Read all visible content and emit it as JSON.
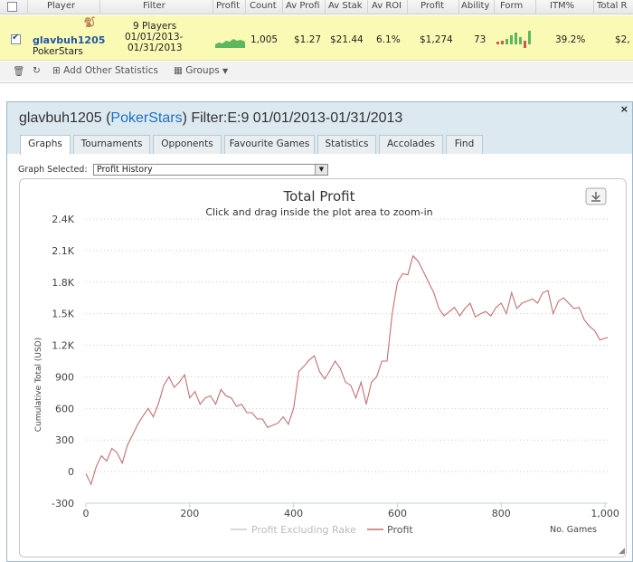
{
  "table": {
    "headers": [
      "Player",
      "Filter",
      "Profit",
      "Count",
      "Av Profi",
      "Av Stak",
      "Av ROI",
      "Profit",
      "Ability",
      "Form",
      "ITM%",
      "Total R"
    ],
    "row": {
      "checked": true,
      "player": "glavbuh1205",
      "site": "PokerStars",
      "filter_players": "9 Players",
      "filter_from": "01/01/2013-",
      "filter_to": "01/31/2013",
      "count": "1,005",
      "av_profit": "$1.27",
      "av_stake": "$21.44",
      "av_roi": "6.1%",
      "profit": "$1,274",
      "ability": "73",
      "itm": "39.2%",
      "total_r": "$2,"
    },
    "toolbar": {
      "add_stats": "Add Other Statistics",
      "groups": "Groups"
    }
  },
  "dialog": {
    "player": "glavbuh1205",
    "site": "PokerStars",
    "filter": "Filter:E:9 01/01/2013-01/31/2013",
    "close": "×",
    "tabs": [
      "Graphs",
      "Tournaments",
      "Opponents",
      "Favourite Games",
      "Statistics",
      "Accolades",
      "Find"
    ],
    "graph_selected_label": "Graph Selected:",
    "graph_selected_value": "Profit History"
  },
  "chart_data": {
    "type": "line",
    "title": "Total Profit",
    "subtitle": "Click and drag inside the plot area to zoom-in",
    "ylabel": "Cumulative Total (USD)",
    "xlabel": "No. Games",
    "ylim": [
      -300,
      2400
    ],
    "xlim": [
      0,
      1005
    ],
    "yticks": [
      -300,
      0,
      300,
      600,
      900,
      1200,
      1500,
      1800,
      2100,
      2400
    ],
    "ytick_labels": [
      "-300",
      "0",
      "300",
      "600",
      "900",
      "1.2K",
      "1.5K",
      "1.8K",
      "2.1K",
      "2.4K"
    ],
    "xticks": [
      0,
      200,
      400,
      600,
      800,
      1000
    ],
    "xtick_labels": [
      "0",
      "200",
      "400",
      "600",
      "800",
      "1,000"
    ],
    "grid": true,
    "legend_position": "bottom-center",
    "series": [
      {
        "name": "Profit Excluding Rake",
        "color": "#cccccc",
        "values": []
      },
      {
        "name": "Profit",
        "color": "#c0716f",
        "x": [
          0,
          10,
          20,
          30,
          40,
          50,
          60,
          70,
          80,
          90,
          100,
          110,
          120,
          130,
          140,
          150,
          160,
          170,
          180,
          190,
          200,
          210,
          220,
          230,
          240,
          250,
          260,
          270,
          280,
          290,
          300,
          310,
          320,
          330,
          340,
          350,
          360,
          370,
          380,
          390,
          400,
          410,
          420,
          430,
          440,
          450,
          460,
          470,
          480,
          490,
          500,
          510,
          520,
          530,
          540,
          550,
          560,
          570,
          580,
          590,
          600,
          610,
          620,
          630,
          640,
          650,
          660,
          670,
          680,
          690,
          700,
          710,
          720,
          730,
          740,
          750,
          760,
          770,
          780,
          790,
          800,
          810,
          820,
          830,
          840,
          850,
          860,
          870,
          880,
          890,
          900,
          910,
          920,
          930,
          940,
          950,
          960,
          970,
          980,
          990,
          1005
        ],
        "values": [
          -20,
          -120,
          50,
          150,
          100,
          220,
          180,
          80,
          250,
          350,
          450,
          530,
          600,
          520,
          650,
          820,
          900,
          800,
          850,
          920,
          700,
          760,
          640,
          700,
          720,
          640,
          780,
          720,
          700,
          620,
          640,
          560,
          560,
          500,
          500,
          420,
          440,
          460,
          520,
          450,
          600,
          950,
          1000,
          1060,
          1100,
          950,
          880,
          960,
          1050,
          980,
          850,
          820,
          700,
          850,
          640,
          850,
          900,
          1050,
          1050,
          1500,
          1800,
          1880,
          1870,
          2050,
          2000,
          1900,
          1800,
          1700,
          1550,
          1480,
          1520,
          1560,
          1480,
          1550,
          1600,
          1470,
          1500,
          1520,
          1480,
          1560,
          1600,
          1500,
          1700,
          1550,
          1600,
          1620,
          1640,
          1600,
          1700,
          1720,
          1500,
          1620,
          1650,
          1600,
          1550,
          1560,
          1440,
          1380,
          1340,
          1250,
          1274
        ]
      }
    ]
  }
}
